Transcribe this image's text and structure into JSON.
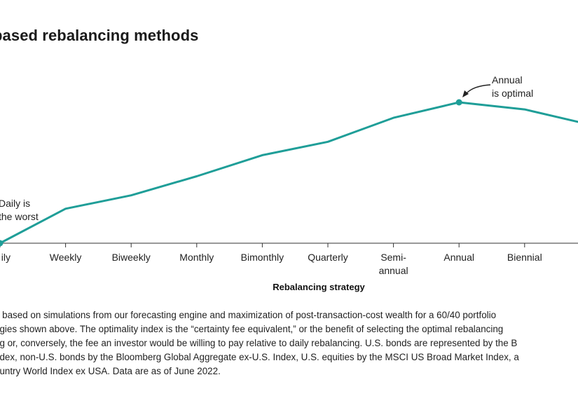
{
  "chart_data": {
    "type": "line",
    "title": "based rebalancing methods",
    "xlabel": "Rebalancing strategy",
    "ylabel": "",
    "categories": [
      [
        "ily"
      ],
      [
        "Weekly"
      ],
      [
        "Biweekly"
      ],
      [
        "Monthly"
      ],
      [
        "Bimonthly"
      ],
      [
        "Quarterly"
      ],
      [
        "Semi-",
        "annual"
      ],
      [
        "Annual"
      ],
      [
        "Biennial"
      ],
      [
        ""
      ]
    ],
    "values": [
      0,
      0.245,
      0.34,
      0.475,
      0.625,
      0.72,
      0.89,
      1.0,
      0.95,
      0.85
    ],
    "ylim": [
      0,
      1.15
    ],
    "line_color": "#1f9e98",
    "annotations": [
      {
        "text": [
          "Daily is",
          "the worst"
        ],
        "category_index": 0
      },
      {
        "text": [
          "Annual",
          "is optimal"
        ],
        "category_index": 7
      }
    ]
  },
  "note": {
    "lines": [
      "e based on simulations from our forecasting engine and maximization of post-transaction-cost wealth for a 60/40 portfolio",
      "egies shown above. The optimality index is the “certainty fee equivalent,” or the benefit of selecting the optimal rebalancing",
      "ng or, conversely, the fee an investor would be willing to pay relative to daily rebalancing. U.S. bonds are represented by the B",
      "ndex, non-U.S. bonds by the Bloomberg Global Aggregate ex-U.S. Index, U.S. equities by the MSCI US Broad Market Index, a",
      "ountry World Index ex USA. Data are as of June 2022."
    ],
    "trailing": "."
  }
}
